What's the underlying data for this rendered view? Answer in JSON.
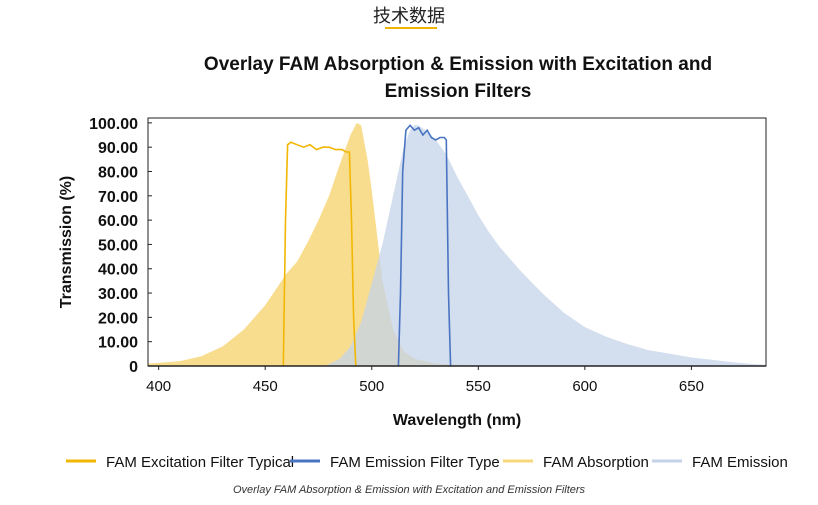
{
  "section": {
    "title": "技术数据"
  },
  "caption": "Overlay FAM Absorption & Emission with Excitation and Emission Filters",
  "chart_data": {
    "type": "area",
    "title_lines": [
      "Overlay FAM Absorption & Emission with Excitation and",
      "Emission Filters"
    ],
    "xlabel": "Wavelength (nm)",
    "ylabel": "Transmission (%)",
    "xlim": [
      395,
      685
    ],
    "ylim": [
      0,
      102
    ],
    "x_ticks": [
      400,
      450,
      500,
      550,
      600,
      650
    ],
    "y_ticks": [
      {
        "value": 0,
        "label": "0"
      },
      {
        "value": 10,
        "label": "10.00"
      },
      {
        "value": 20,
        "label": "20.00"
      },
      {
        "value": 30,
        "label": "30.00"
      },
      {
        "value": 40,
        "label": "40.00"
      },
      {
        "value": 50,
        "label": "50.00"
      },
      {
        "value": 60,
        "label": "60.00"
      },
      {
        "value": 70,
        "label": "70.00"
      },
      {
        "value": 80,
        "label": "80.00"
      },
      {
        "value": 90,
        "label": "90.00"
      },
      {
        "value": 100,
        "label": "100.00"
      }
    ],
    "grid": false,
    "legend_position": "bottom",
    "series": [
      {
        "name": "FAM Absorption",
        "kind": "area",
        "color": "#f8d77a",
        "x": [
          395,
          410,
          420,
          430,
          440,
          450,
          460,
          465,
          470,
          475,
          480,
          485,
          490,
          493,
          495,
          498,
          500,
          503,
          505,
          510,
          515,
          520,
          530,
          540,
          550
        ],
        "y": [
          1,
          2,
          4,
          8,
          15,
          25,
          38,
          43,
          51,
          60,
          70,
          83,
          95,
          100,
          99,
          85,
          72,
          50,
          35,
          15,
          6,
          3,
          1,
          0.5,
          0
        ]
      },
      {
        "name": "FAM Emission",
        "kind": "area",
        "color": "#c4d3e8",
        "x": [
          478,
          485,
          490,
          495,
          500,
          505,
          510,
          515,
          518,
          520,
          522,
          525,
          530,
          535,
          540,
          545,
          550,
          555,
          560,
          570,
          580,
          590,
          600,
          610,
          620,
          630,
          640,
          650,
          660,
          670,
          680,
          685
        ],
        "y": [
          0,
          3,
          8,
          18,
          34,
          50,
          70,
          90,
          97,
          99,
          99,
          97,
          93,
          87,
          78,
          70,
          62,
          55,
          49,
          39,
          30,
          22,
          16,
          12,
          9,
          6.5,
          5,
          3.5,
          2.5,
          1.5,
          0.7,
          0.5
        ]
      },
      {
        "name": "FAM Excitation Filter Typical",
        "kind": "line",
        "color": "#f2b705",
        "x": [
          458.5,
          459.5,
          460.5,
          462,
          465,
          468,
          471,
          474,
          477,
          480,
          483,
          486,
          488,
          489.5,
          490.5,
          491.5,
          492.5
        ],
        "y": [
          0,
          60,
          91,
          92,
          91,
          90,
          91,
          89,
          90,
          90,
          89,
          89,
          88,
          88,
          60,
          20,
          0
        ]
      },
      {
        "name": "FAM Emission Filter Type",
        "kind": "line",
        "color": "#4a74c2",
        "x": [
          512.5,
          513.5,
          514.5,
          516,
          518,
          520,
          522,
          524,
          526,
          528,
          530,
          532,
          534,
          535,
          536,
          537
        ],
        "y": [
          0,
          30,
          80,
          97,
          99,
          97,
          98,
          95,
          97,
          94,
          93,
          94,
          94,
          93,
          30,
          0
        ]
      }
    ],
    "legend": [
      {
        "name": "FAM Excitation Filter Typical",
        "color": "#f2b705"
      },
      {
        "name": "FAM Emission Filter Type",
        "color": "#4a74c2"
      },
      {
        "name": "FAM Absorption",
        "color": "#f8d77a"
      },
      {
        "name": "FAM Emission",
        "color": "#c4d3e8"
      }
    ]
  }
}
